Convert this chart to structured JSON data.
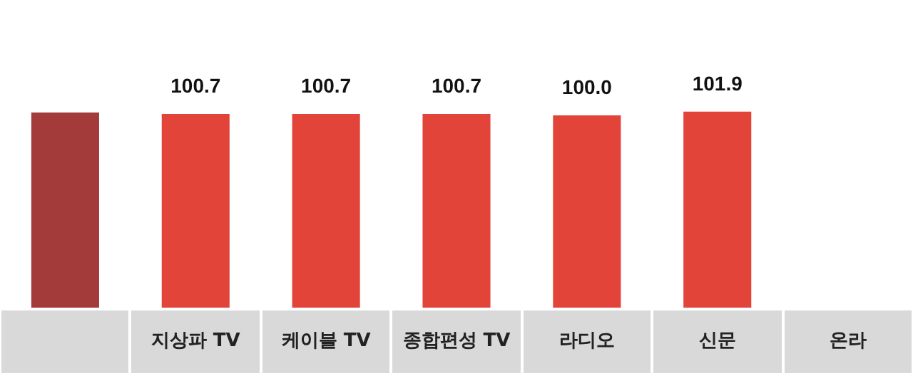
{
  "chart_data": {
    "type": "bar",
    "categories": [
      null,
      "지상파 TV",
      "케이블 TV",
      "종합편성 TV",
      "라디오",
      "신문",
      "온라"
    ],
    "values": [
      101.5,
      100.7,
      100.7,
      100.7,
      100.0,
      101.9,
      null
    ],
    "colors": [
      "#a33b3b",
      "#e2443a",
      "#e2443a",
      "#e2443a",
      "#e2443a",
      "#e2443a",
      "#e2443a"
    ],
    "value_labels": [
      null,
      "100.7",
      "100.7",
      "100.7",
      "100.0",
      "101.9",
      null
    ],
    "ylim": [
      0,
      160
    ],
    "tick_labels": "x",
    "grid": false,
    "legend": false
  }
}
